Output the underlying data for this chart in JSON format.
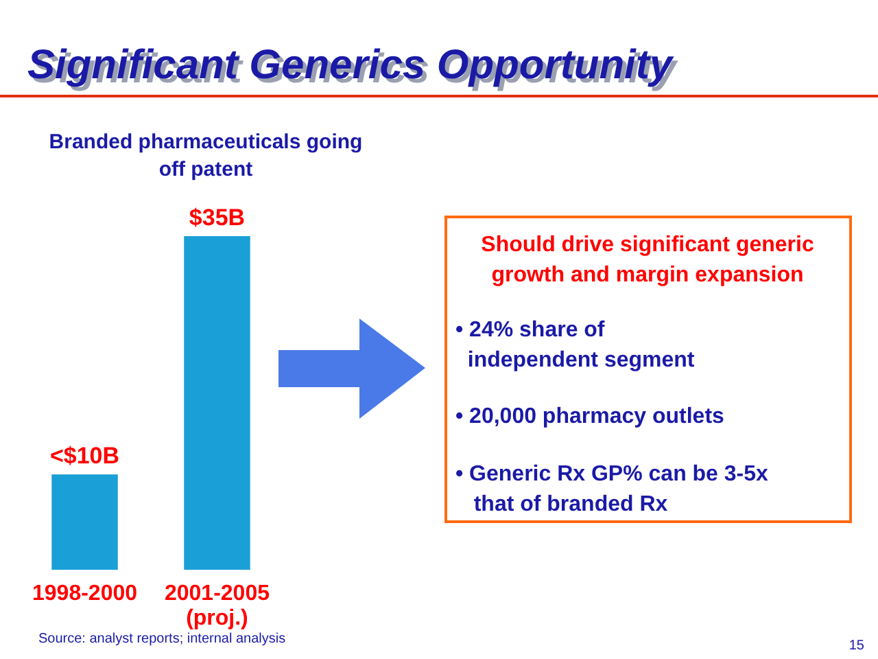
{
  "chart_data": {
    "type": "bar",
    "title": "Significant Generics Opportunity",
    "subtitle": "Branded pharmaceuticals going\noff patent",
    "categories": [
      "1998-2000",
      "2001-2005\n(proj.)"
    ],
    "values": [
      10,
      35
    ],
    "color": "#1a9fd6",
    "value_labels": [
      "<$10B",
      "$35B"
    ],
    "annotations": [
      "Should drive significant generic\ngrowth and margin expansion",
      "• 24% share of\n  independent segment",
      "• 20,000 pharmacy outlets",
      "• Generic Rx GP% can be 3-5x\n   that of branded Rx",
      "Source: analyst reports; internal analysis",
      "15"
    ]
  }
}
